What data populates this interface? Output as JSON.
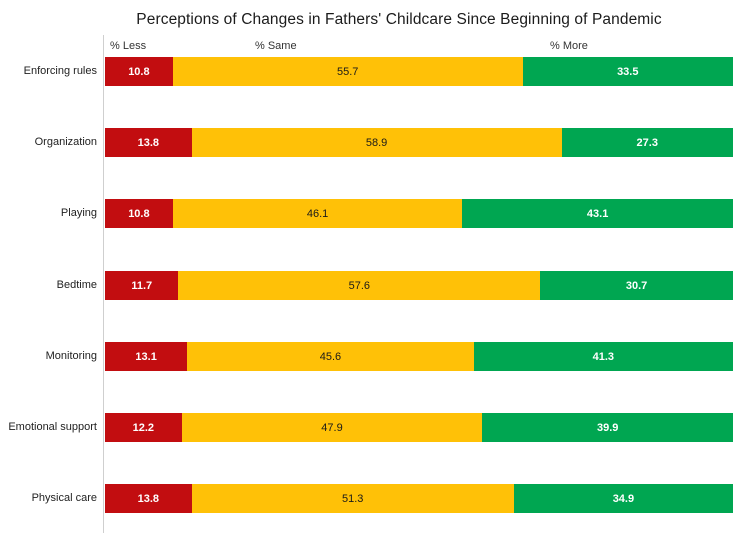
{
  "title": "Perceptions of Changes in Fathers' Childcare Since Beginning of Pandemic",
  "column_headers": {
    "less": "% Less",
    "same": "% Same",
    "more": "% More"
  },
  "chart_data": {
    "type": "bar",
    "stacked": true,
    "orientation": "horizontal",
    "percent_total": 100,
    "title": "Perceptions of Changes in Fathers' Childcare Since Beginning of Pandemic",
    "xlabel": "",
    "ylabel": "",
    "xlim": [
      0,
      100
    ],
    "grid": false,
    "legend_position": "top",
    "categories": [
      "Enforcing rules",
      "Organization",
      "Playing",
      "Bedtime",
      "Monitoring",
      "Emotional support",
      "Physical care"
    ],
    "series": [
      {
        "name": "% Less",
        "color": "#C20D10",
        "values": [
          10.8,
          13.8,
          10.8,
          11.7,
          13.1,
          12.2,
          13.8
        ]
      },
      {
        "name": "% Same",
        "color": "#FFC107",
        "values": [
          55.7,
          58.9,
          46.1,
          57.6,
          45.6,
          47.9,
          51.3
        ]
      },
      {
        "name": "% More",
        "color": "#00A651",
        "values": [
          33.5,
          27.3,
          43.1,
          30.7,
          41.3,
          39.9,
          34.9
        ]
      }
    ]
  },
  "colors": {
    "less": "#C20D10",
    "same": "#FFC107",
    "more": "#00A651",
    "axis": "#cfcfcf"
  }
}
